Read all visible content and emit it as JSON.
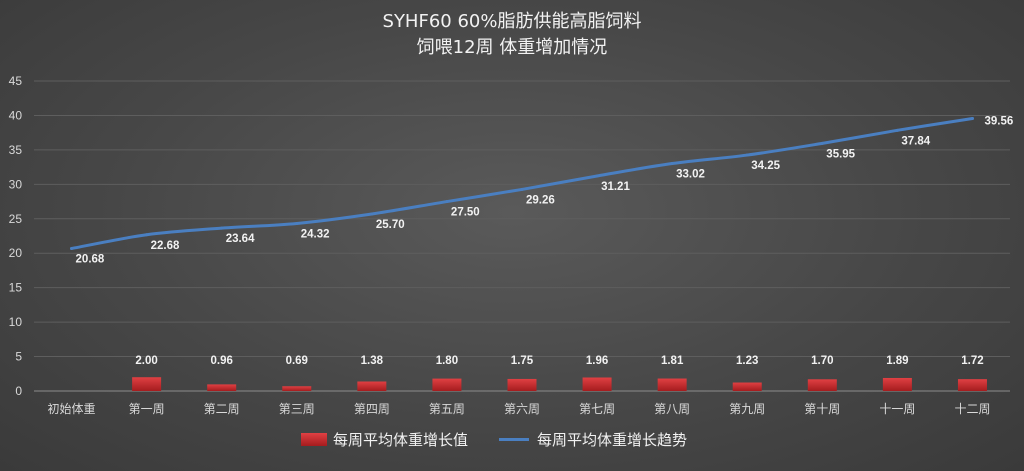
{
  "chart_data": {
    "type": "bar",
    "title_line1": "SYHF60 60%脂肪供能高脂饲料",
    "title_line2": "饲喂12周 体重增加情况",
    "categories": [
      "初始体重",
      "第一周",
      "第二周",
      "第三周",
      "第四周",
      "第五周",
      "第六周",
      "第七周",
      "第八周",
      "第九周",
      "第十周",
      "十一周",
      "十二周"
    ],
    "ylim": [
      0,
      45
    ],
    "yticks": [
      0,
      5,
      10,
      15,
      20,
      25,
      30,
      35,
      40,
      45
    ],
    "grid": true,
    "legend_position": "bottom",
    "series": [
      {
        "name": "每周平均体重增长值",
        "kind": "bar",
        "color": "#c9282a",
        "values": [
          null,
          2.0,
          0.96,
          0.69,
          1.38,
          1.8,
          1.75,
          1.96,
          1.81,
          1.23,
          1.7,
          1.89,
          1.72
        ],
        "labels": [
          "",
          "2.00",
          "0.96",
          "0.69",
          "1.38",
          "1.80",
          "1.75",
          "1.96",
          "1.81",
          "1.23",
          "1.70",
          "1.89",
          "1.72"
        ]
      },
      {
        "name": "每周平均体重增长趋势",
        "kind": "line",
        "color": "#4a7fc1",
        "values": [
          20.68,
          22.68,
          23.64,
          24.32,
          25.7,
          27.5,
          29.26,
          31.21,
          33.02,
          34.25,
          35.95,
          37.84,
          39.56
        ],
        "labels": [
          "20.68",
          "22.68",
          "23.64",
          "24.32",
          "25.70",
          "27.50",
          "29.26",
          "31.21",
          "33.02",
          "34.25",
          "35.95",
          "37.84",
          "39.56"
        ]
      }
    ]
  }
}
